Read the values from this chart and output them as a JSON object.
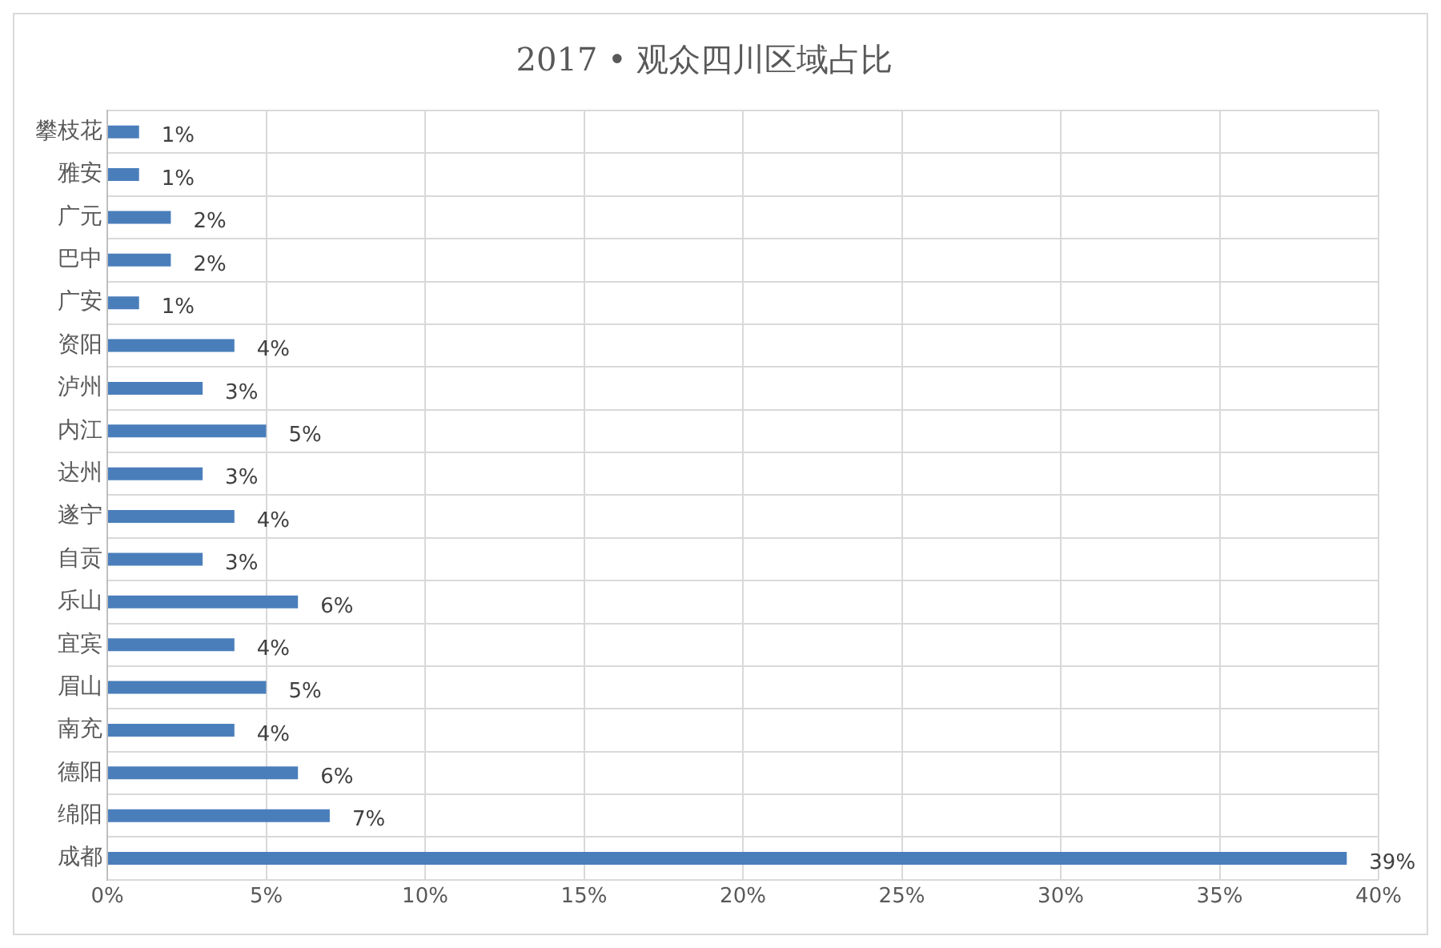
{
  "chart_data": {
    "type": "bar",
    "orientation": "horizontal",
    "title": "2017 • 观众四川区域占比",
    "categories": [
      "攀枝花",
      "雅安",
      "广元",
      "巴中",
      "广安",
      "资阳",
      "泸州",
      "内江",
      "达州",
      "遂宁",
      "自贡",
      "乐山",
      "宜宾",
      "眉山",
      "南充",
      "德阳",
      "绵阳",
      "成都"
    ],
    "values": [
      1,
      1,
      2,
      2,
      1,
      4,
      3,
      5,
      3,
      4,
      3,
      6,
      4,
      5,
      4,
      6,
      7,
      39
    ],
    "value_labels": [
      "1%",
      "1%",
      "2%",
      "2%",
      "1%",
      "4%",
      "3%",
      "5%",
      "3%",
      "4%",
      "3%",
      "6%",
      "4%",
      "5%",
      "4%",
      "6%",
      "7%",
      "39%"
    ],
    "color": "#4a7ebb",
    "xlim": [
      0,
      40
    ],
    "xticks": [
      {
        "value": 0,
        "label": "0%"
      },
      {
        "value": 5,
        "label": "5%"
      },
      {
        "value": 10,
        "label": "10%"
      },
      {
        "value": 15,
        "label": "15%"
      },
      {
        "value": 20,
        "label": "20%"
      },
      {
        "value": 25,
        "label": "25%"
      },
      {
        "value": 30,
        "label": "30%"
      },
      {
        "value": 35,
        "label": "35%"
      },
      {
        "value": 40,
        "label": "40%"
      }
    ],
    "grid": true
  }
}
